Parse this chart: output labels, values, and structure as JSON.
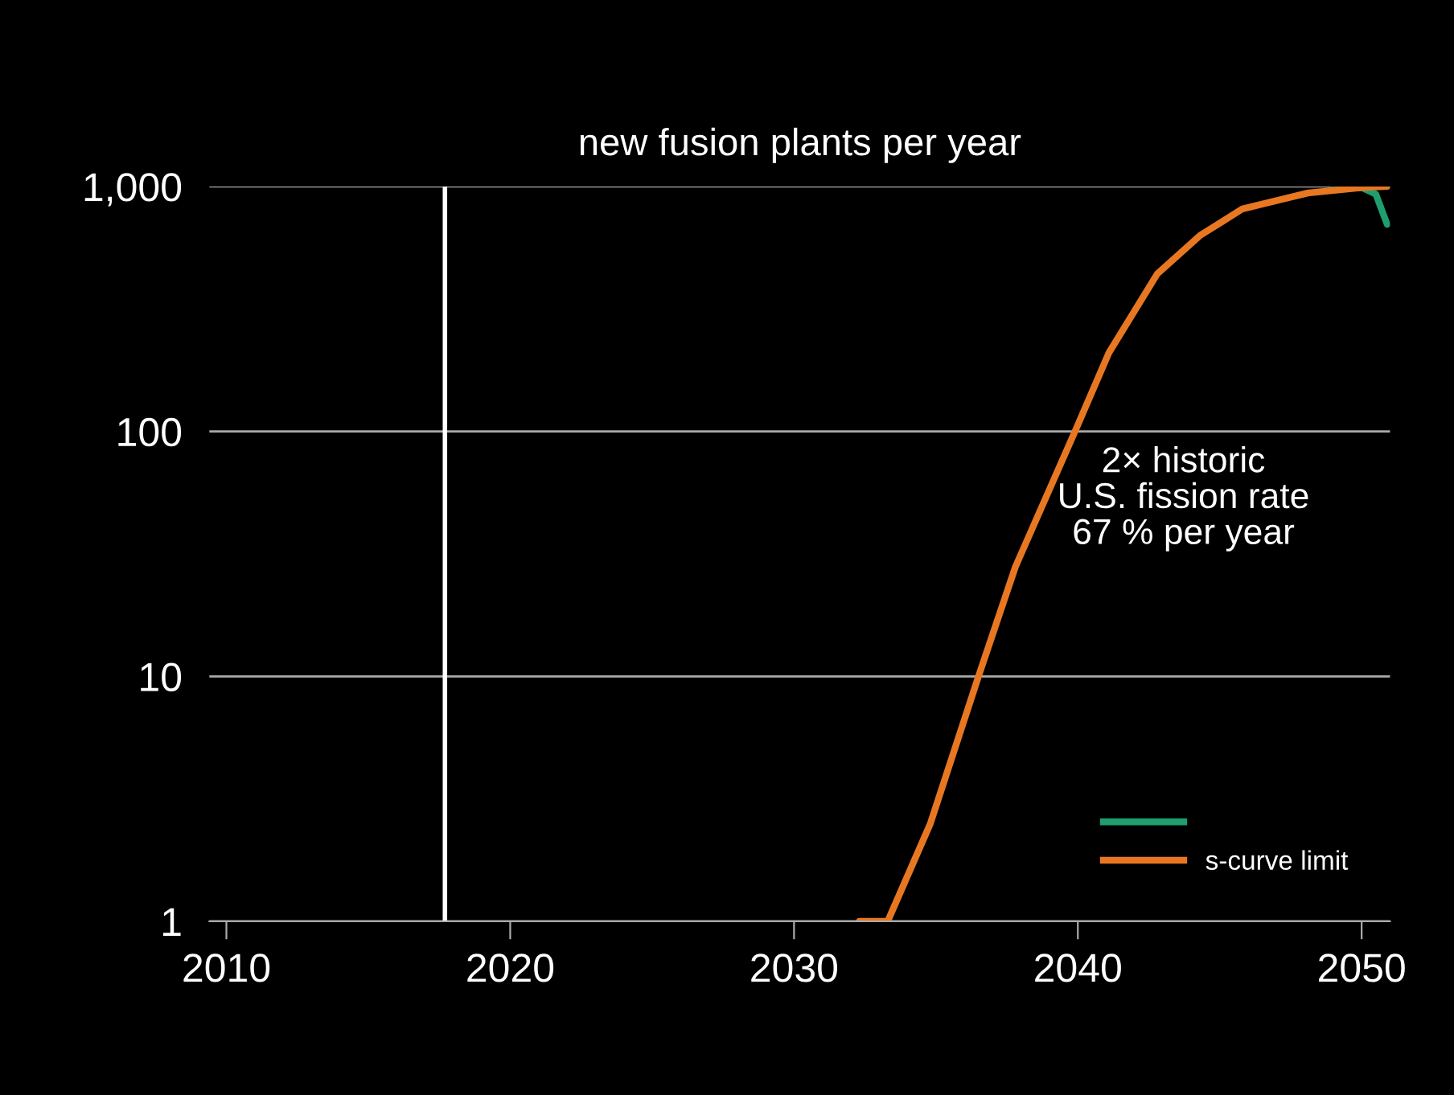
{
  "chart_data": {
    "type": "line",
    "title": "new fusion plants per year",
    "series": [
      {
        "color": "#1f9e6e",
        "x": [
          2049.0,
          2050.0,
          2050.5,
          2050.9
        ],
        "values": [
          980,
          990,
          930,
          700
        ]
      },
      {
        "name": "s-curve limit",
        "color": "#e87722",
        "x": [
          2032.3,
          2033.3,
          2034.8,
          2036.5,
          2037.8,
          2039.9,
          2041.1,
          2042.8,
          2044.3,
          2045.8,
          2048.1,
          2050.0,
          2050.9
        ],
        "values": [
          1,
          1,
          2.5,
          10,
          28,
          100,
          210,
          440,
          630,
          810,
          940,
          990,
          1000
        ]
      }
    ],
    "log": "y",
    "xlim": [
      2009.4,
      2051
    ],
    "ylim": [
      1,
      1000
    ],
    "xticks": [
      2010,
      2020,
      2030,
      2040,
      2050
    ],
    "yticks": [
      {
        "value": 1,
        "label": "1"
      },
      {
        "value": 10,
        "label": "10"
      },
      {
        "value": 100,
        "label": "100"
      },
      {
        "value": 1000,
        "label": "1,000"
      }
    ],
    "grid": "y",
    "legend": "bottom right",
    "marker": "none",
    "line_style": "solid",
    "ref_lines": [
      {
        "axis": "x",
        "value": 2017.7,
        "color": "#ffffff"
      }
    ],
    "annotations": [
      "2× historic\nU.S. fission rate\n67 % per year"
    ]
  }
}
